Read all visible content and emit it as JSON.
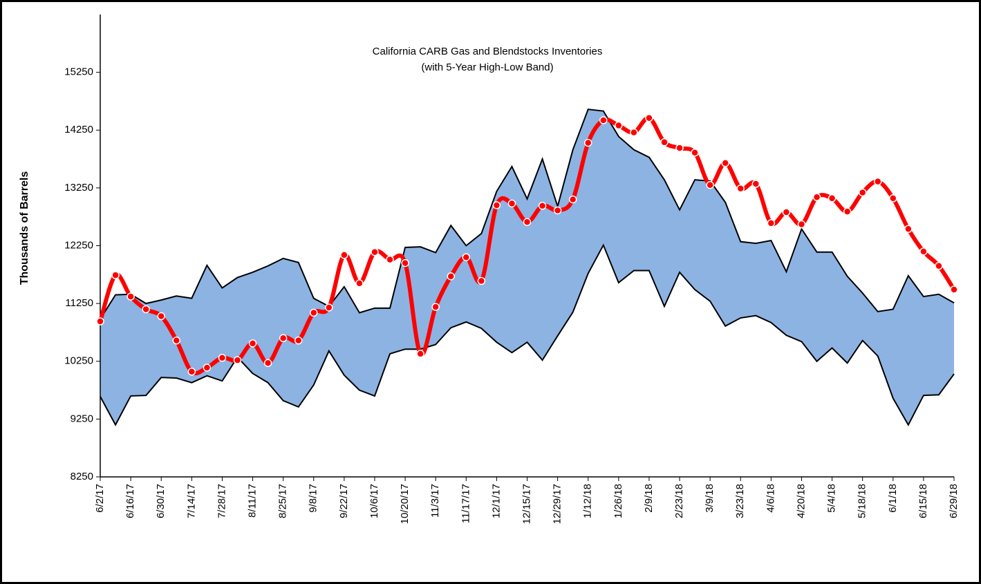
{
  "chart_data": {
    "type": "line",
    "title": "California CARB Gas and Blendstocks Inventories",
    "subtitle": "(with 5-Year High-Low Band)",
    "y_label": "Thousands of Barrels",
    "categories": [
      "6/2/17",
      null,
      "6/16/17",
      null,
      "6/30/17",
      null,
      "7/14/17",
      null,
      "7/28/17",
      null,
      "8/11/17",
      null,
      "8/25/17",
      null,
      "9/8/17",
      null,
      "9/22/17",
      null,
      "10/6/17",
      null,
      "10/20/17",
      null,
      "11/3/17",
      null,
      "11/17/17",
      null,
      "12/1/17",
      null,
      "12/15/17",
      null,
      "12/29/17",
      null,
      "1/12/18",
      null,
      "1/26/18",
      null,
      "2/9/18",
      null,
      "2/23/18",
      null,
      "3/9/18",
      null,
      "3/23/18",
      null,
      "4/6/18",
      null,
      "4/20/18",
      null,
      "5/4/18",
      null,
      "5/18/18",
      null,
      "6/1/18",
      null,
      "6/15/18",
      null,
      "6/29/18"
    ],
    "series": [
      {
        "color": "#ff0000",
        "values": [
          10940,
          11740,
          11370,
          11150,
          11030,
          10610,
          10070,
          10140,
          10310,
          10270,
          10560,
          10220,
          10650,
          10610,
          11090,
          11180,
          12090,
          11600,
          12140,
          12010,
          11950,
          10380,
          11190,
          11720,
          12050,
          11640,
          12950,
          12980,
          12660,
          12940,
          12860,
          13050,
          14030,
          14420,
          14330,
          14210,
          14460,
          14040,
          13940,
          13860,
          13300,
          13680,
          13240,
          13320,
          12640,
          12830,
          12620,
          13090,
          13070,
          12840,
          13170,
          13360,
          13070,
          12540,
          12150,
          11900,
          11490
        ]
      }
    ],
    "band": {
      "color": "#8db3e2",
      "high": [
        10980,
        11400,
        11410,
        11250,
        11310,
        11380,
        11340,
        11910,
        11520,
        11700,
        11790,
        11900,
        12030,
        11960,
        11340,
        11200,
        11540,
        11090,
        11170,
        11170,
        12220,
        12230,
        12130,
        12600,
        12250,
        12460,
        13190,
        13620,
        13060,
        13750,
        12930,
        13910,
        14610,
        14580,
        14140,
        13910,
        13780,
        13390,
        12870,
        13390,
        13370,
        13000,
        12320,
        12290,
        12340,
        11800,
        12540,
        12140,
        12140,
        11720,
        11430,
        11110,
        11150,
        11730,
        11370,
        11410,
        11260
      ],
      "low": [
        9640,
        9150,
        9650,
        9660,
        9970,
        9960,
        9880,
        10000,
        9910,
        10320,
        10040,
        9880,
        9570,
        9460,
        9840,
        10430,
        10010,
        9750,
        9650,
        10380,
        10460,
        10460,
        10540,
        10830,
        10930,
        10820,
        10580,
        10400,
        10580,
        10270,
        10690,
        11100,
        11770,
        12260,
        11610,
        11820,
        11820,
        11200,
        11790,
        11490,
        11290,
        10860,
        11000,
        11040,
        10920,
        10700,
        10590,
        10250,
        10480,
        10220,
        10610,
        10340,
        9610,
        9150,
        9660,
        9670,
        10030
      ]
    },
    "ylim": [
      8250,
      16250
    ],
    "yticks": [
      8250,
      9250,
      10250,
      11250,
      12250,
      13250,
      14250,
      15250
    ],
    "grid": false
  }
}
